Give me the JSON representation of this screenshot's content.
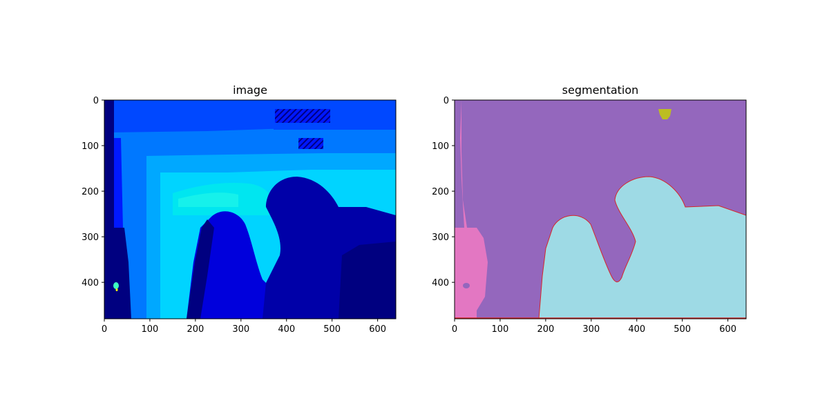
{
  "chart_data": [
    {
      "type": "heatmap",
      "title": "image",
      "xlabel": "",
      "ylabel": "",
      "xlim": [
        0,
        640
      ],
      "ylim": [
        480,
        0
      ],
      "x_ticks": [
        "0",
        "100",
        "200",
        "300",
        "400",
        "500",
        "600"
      ],
      "y_ticks": [
        "0",
        "100",
        "200",
        "300",
        "400"
      ],
      "colormap": "jet",
      "colors": [
        "#000080",
        "#0000a8",
        "#0000dc",
        "#0018ff",
        "#0048ff",
        "#0078ff",
        "#00a8ff",
        "#00d4ff",
        "#3cffc2",
        "#ffff00"
      ]
    },
    {
      "type": "heatmap",
      "title": "segmentation",
      "xlabel": "",
      "ylabel": "",
      "xlim": [
        0,
        640
      ],
      "ylim": [
        480,
        0
      ],
      "x_ticks": [
        "0",
        "100",
        "200",
        "300",
        "400",
        "500",
        "600"
      ],
      "y_ticks": [
        "0",
        "100",
        "200",
        "300",
        "400"
      ],
      "colormap": "tab10",
      "colors": [
        "#9467bd",
        "#9edae5",
        "#e377c2",
        "#bcbd22",
        "#d62728"
      ]
    }
  ]
}
